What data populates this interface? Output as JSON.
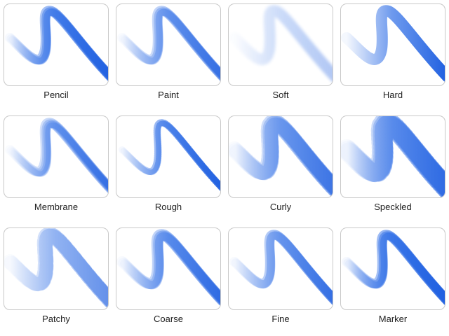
{
  "brushes": [
    {
      "label": "Pencil"
    },
    {
      "label": "Paint"
    },
    {
      "label": "Soft"
    },
    {
      "label": "Hard"
    },
    {
      "label": "Membrane"
    },
    {
      "label": "Rough"
    },
    {
      "label": "Curly"
    },
    {
      "label": "Speckled"
    },
    {
      "label": "Patchy"
    },
    {
      "label": "Coarse"
    },
    {
      "label": "Fine"
    },
    {
      "label": "Marker"
    }
  ]
}
